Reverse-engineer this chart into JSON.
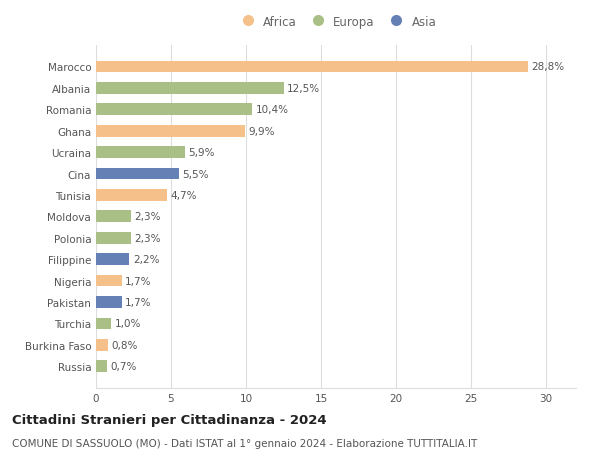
{
  "countries": [
    "Marocco",
    "Albania",
    "Romania",
    "Ghana",
    "Ucraina",
    "Cina",
    "Tunisia",
    "Moldova",
    "Polonia",
    "Filippine",
    "Nigeria",
    "Pakistan",
    "Turchia",
    "Burkina Faso",
    "Russia"
  ],
  "values": [
    28.8,
    12.5,
    10.4,
    9.9,
    5.9,
    5.5,
    4.7,
    2.3,
    2.3,
    2.2,
    1.7,
    1.7,
    1.0,
    0.8,
    0.7
  ],
  "labels": [
    "28,8%",
    "12,5%",
    "10,4%",
    "9,9%",
    "5,9%",
    "5,5%",
    "4,7%",
    "2,3%",
    "2,3%",
    "2,2%",
    "1,7%",
    "1,7%",
    "1,0%",
    "0,8%",
    "0,7%"
  ],
  "continents": [
    "Africa",
    "Europa",
    "Europa",
    "Africa",
    "Europa",
    "Asia",
    "Africa",
    "Europa",
    "Europa",
    "Asia",
    "Africa",
    "Asia",
    "Europa",
    "Africa",
    "Europa"
  ],
  "colors": {
    "Africa": "#F5C08A",
    "Europa": "#AABF85",
    "Asia": "#6580B5"
  },
  "legend_items": [
    "Africa",
    "Europa",
    "Asia"
  ],
  "xlim": [
    0,
    32
  ],
  "xticks": [
    0,
    5,
    10,
    15,
    20,
    25,
    30
  ],
  "title": "Cittadini Stranieri per Cittadinanza - 2024",
  "subtitle": "COMUNE DI SASSUOLO (MO) - Dati ISTAT al 1° gennaio 2024 - Elaborazione TUTTITALIA.IT",
  "background_color": "#ffffff",
  "grid_color": "#dddddd",
  "bar_height": 0.55,
  "title_fontsize": 9.5,
  "subtitle_fontsize": 7.5,
  "label_fontsize": 7.5,
  "tick_fontsize": 7.5,
  "legend_fontsize": 8.5
}
